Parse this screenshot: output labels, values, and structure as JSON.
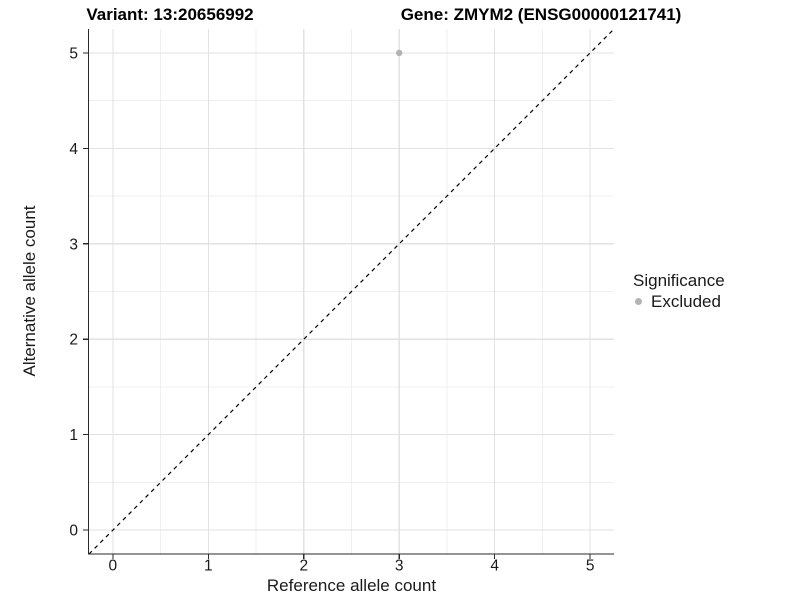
{
  "chart_data": {
    "type": "scatter",
    "titles": [
      "Variant: 13:20656992",
      "Gene: ZMYM2 (ENSG00000121741)"
    ],
    "xlabel": "Reference allele count",
    "ylabel": "Alternative allele count",
    "xlim": [
      -0.25,
      5.25
    ],
    "ylim": [
      -0.25,
      5.25
    ],
    "xticks": [
      0,
      1,
      2,
      3,
      4,
      5
    ],
    "yticks": [
      0,
      1,
      2,
      3,
      4,
      5
    ],
    "grid": {
      "major": true,
      "minor": true
    },
    "reference_line": {
      "kind": "identity",
      "style": "dashed",
      "color": "#000000"
    },
    "series": [
      {
        "name": "Excluded",
        "color": "#b3b3b3",
        "points": [
          [
            3,
            5
          ]
        ]
      }
    ],
    "legend": {
      "title": "Significance",
      "position": "right",
      "items": [
        {
          "label": "Excluded",
          "color": "#b3b3b3"
        }
      ]
    },
    "colors": {
      "major_grid": "#e2e2e2",
      "minor_grid": "#efefef",
      "axis": "#2a2a2a",
      "tick_text": "#1a1a1a",
      "background": "#ffffff"
    }
  }
}
